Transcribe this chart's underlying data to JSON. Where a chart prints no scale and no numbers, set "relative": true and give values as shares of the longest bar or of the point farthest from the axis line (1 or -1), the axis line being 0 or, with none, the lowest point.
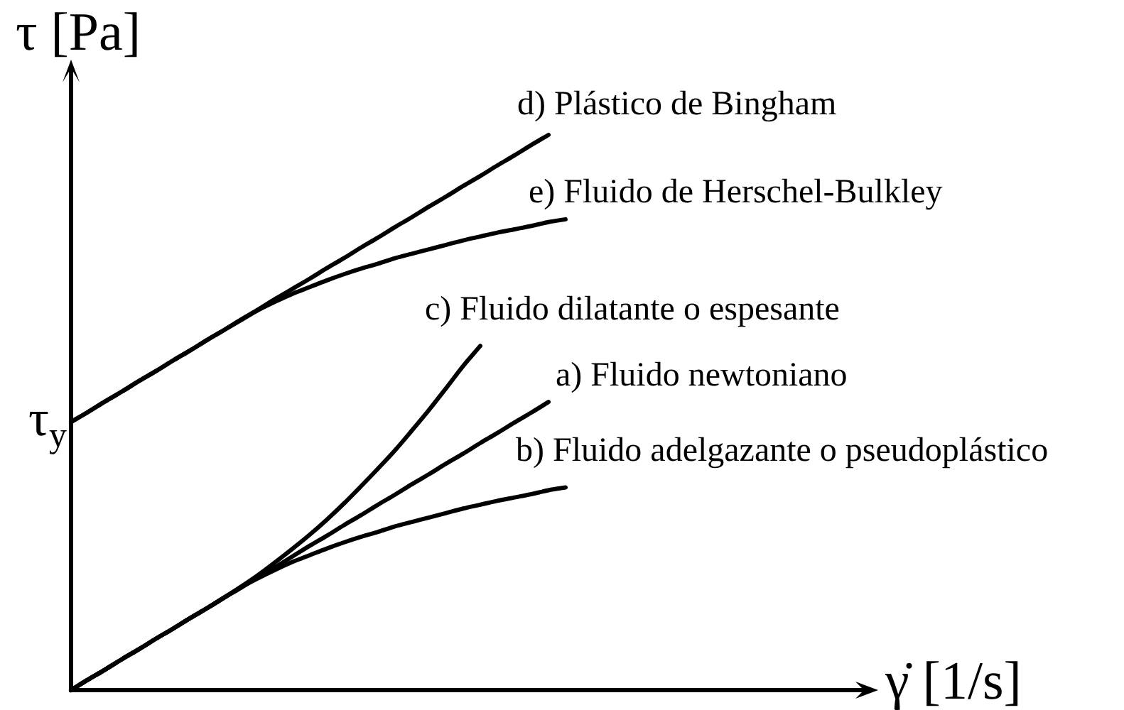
{
  "chart_data": {
    "type": "line",
    "relative": true,
    "xlabel": "γ̇ [1/s]",
    "ylabel": "τ [Pa]",
    "legend": false,
    "tick_labels": false,
    "marker": "none",
    "line_style": "solid",
    "annotations": [
      "τ$_{y}$"
    ],
    "categories": [
      null,
      null,
      null,
      null,
      null,
      null,
      null,
      null,
      null,
      null,
      null,
      null,
      null,
      null,
      null,
      null,
      null,
      null,
      null,
      null,
      null,
      null,
      null,
      null,
      null,
      null,
      null,
      null,
      null,
      null,
      null,
      null,
      null,
      null,
      null,
      null,
      null,
      null,
      null,
      null,
      null,
      null,
      null,
      null,
      null,
      null,
      null,
      null
    ],
    "series": [
      {
        "name": "a) Fluido newtoniano",
        "color": "#000000",
        "values": [
          0,
          0.019,
          0.037,
          0.056,
          0.074,
          0.093,
          0.111,
          0.13,
          0.148,
          0.167,
          0.185,
          0.204,
          0.222,
          0.241,
          0.26,
          0.278,
          0.297,
          0.315,
          0.334,
          0.352,
          0.371,
          0.389,
          0.408,
          0.426,
          0.445,
          0.463,
          0.482,
          0.5,
          0.519,
          null,
          null,
          null,
          null,
          null,
          null,
          null,
          null,
          null,
          null,
          null,
          null,
          null,
          null,
          null,
          null,
          null,
          null,
          null
        ]
      },
      {
        "name": "b) Fluido adelgazante o pseudoplástico",
        "color": "#000000",
        "values": [
          0,
          0.019,
          0.037,
          0.056,
          0.074,
          0.093,
          0.111,
          0.13,
          0.148,
          0.167,
          0.186,
          0.202,
          0.217,
          0.231,
          0.243,
          0.255,
          0.266,
          0.276,
          0.285,
          0.295,
          0.303,
          0.311,
          0.319,
          0.327,
          0.334,
          0.341,
          0.347,
          0.353,
          0.36,
          0.365,
          null,
          null,
          null,
          null,
          null,
          null,
          null,
          null,
          null,
          null,
          null,
          null,
          null,
          null,
          null,
          null,
          null,
          null
        ]
      },
      {
        "name": "c) Fluido dilatante o espesante",
        "color": "#000000",
        "values": [
          0,
          0.019,
          0.037,
          0.056,
          0.074,
          0.093,
          0.111,
          0.13,
          0.148,
          0.167,
          0.187,
          0.208,
          0.231,
          0.255,
          0.28,
          0.307,
          0.336,
          0.367,
          0.399,
          0.432,
          0.468,
          0.505,
          0.544,
          0.584,
          0.62,
          null,
          null,
          null,
          null,
          null,
          null,
          null,
          null,
          null,
          null,
          null,
          null,
          null,
          null,
          null,
          null,
          null,
          null,
          null,
          null,
          null,
          null,
          null
        ]
      },
      {
        "name": "d) Plástico de Bingham",
        "color": "#000000",
        "values": [
          0.483,
          0.501,
          0.52,
          0.538,
          0.557,
          0.575,
          0.594,
          0.612,
          0.631,
          0.649,
          0.668,
          0.686,
          0.705,
          0.723,
          0.741,
          0.76,
          0.778,
          0.797,
          0.815,
          0.834,
          0.852,
          0.871,
          0.889,
          0.908,
          0.926,
          0.945,
          0.963,
          0.982,
          1.0,
          null,
          null,
          null,
          null,
          null,
          null,
          null,
          null,
          null,
          null,
          null,
          null,
          null,
          null,
          null,
          null,
          null,
          null,
          null
        ]
      },
      {
        "name": "e) Fluido de Herschel-Bulkley",
        "color": "#000000",
        "values": [
          0.483,
          0.501,
          0.52,
          0.538,
          0.557,
          0.575,
          0.594,
          0.612,
          0.631,
          0.649,
          0.667,
          0.685,
          0.7,
          0.714,
          0.726,
          0.738,
          0.749,
          0.759,
          0.768,
          0.778,
          0.786,
          0.794,
          0.802,
          0.81,
          0.817,
          0.824,
          0.83,
          0.836,
          0.843,
          0.848,
          null,
          null,
          null,
          null,
          null,
          null,
          null,
          null,
          null,
          null,
          null,
          null,
          null,
          null,
          null,
          null,
          null,
          null
        ]
      }
    ]
  }
}
